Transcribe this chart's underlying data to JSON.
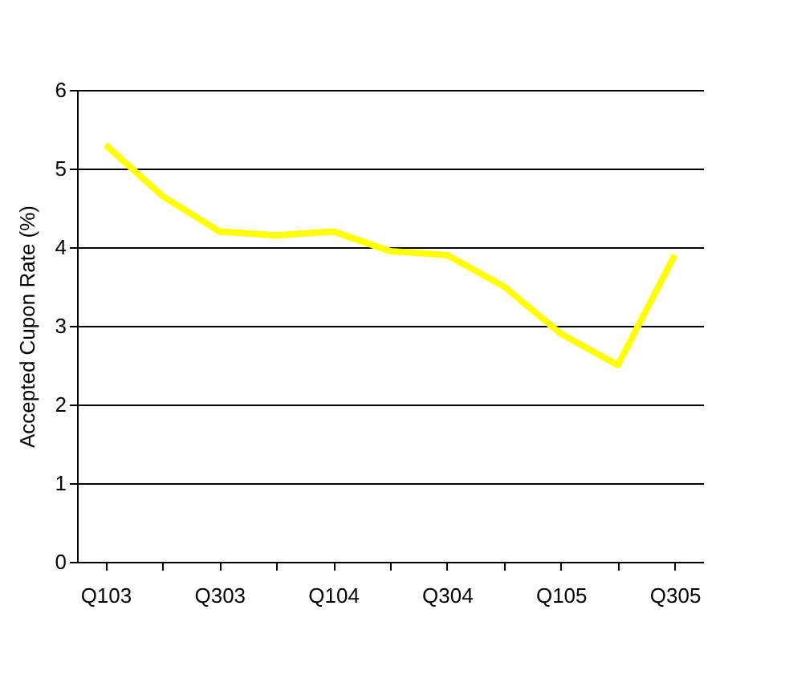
{
  "chart_data": {
    "type": "line",
    "ylabel": "Accepted Cupon Rate (%)",
    "categories": [
      "Q103",
      null,
      "Q303",
      null,
      "Q104",
      null,
      "Q304",
      null,
      "Q105",
      null,
      "Q305"
    ],
    "series": [
      {
        "color": "#ffff00",
        "values": [
          5.3,
          4.65,
          4.2,
          4.15,
          4.2,
          3.95,
          3.9,
          3.5,
          2.9,
          2.5,
          3.9
        ]
      }
    ],
    "ylim": [
      0,
      6
    ],
    "yticks": [
      0,
      1,
      2,
      3,
      4,
      5,
      6
    ],
    "grid": "y",
    "line_style": "solid"
  }
}
